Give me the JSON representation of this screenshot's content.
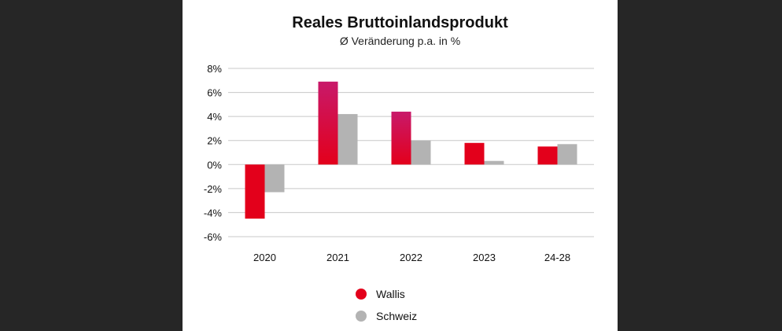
{
  "chart_data": {
    "type": "bar",
    "title": "Reales Bruttoinlandsprodukt",
    "subtitle": "Ø Veränderung p.a. in %",
    "categories": [
      "2020",
      "2021",
      "2022",
      "2023",
      "24-28"
    ],
    "series": [
      {
        "name": "Wallis",
        "values": [
          -4.5,
          6.9,
          4.4,
          1.8,
          1.5
        ],
        "color": "#e3001b"
      },
      {
        "name": "Schweiz",
        "values": [
          -2.3,
          4.2,
          2.0,
          0.3,
          1.7
        ],
        "color": "#b3b3b3"
      }
    ],
    "ylim": [
      -6,
      8
    ],
    "yticks": [
      8,
      6,
      4,
      2,
      0,
      -2,
      -4,
      -6
    ],
    "ytick_labels": [
      "8%",
      "6%",
      "4%",
      "2%",
      "0%",
      "-2%",
      "-4%",
      "-6%"
    ],
    "grid": true,
    "legend_position": "bottom-left"
  }
}
